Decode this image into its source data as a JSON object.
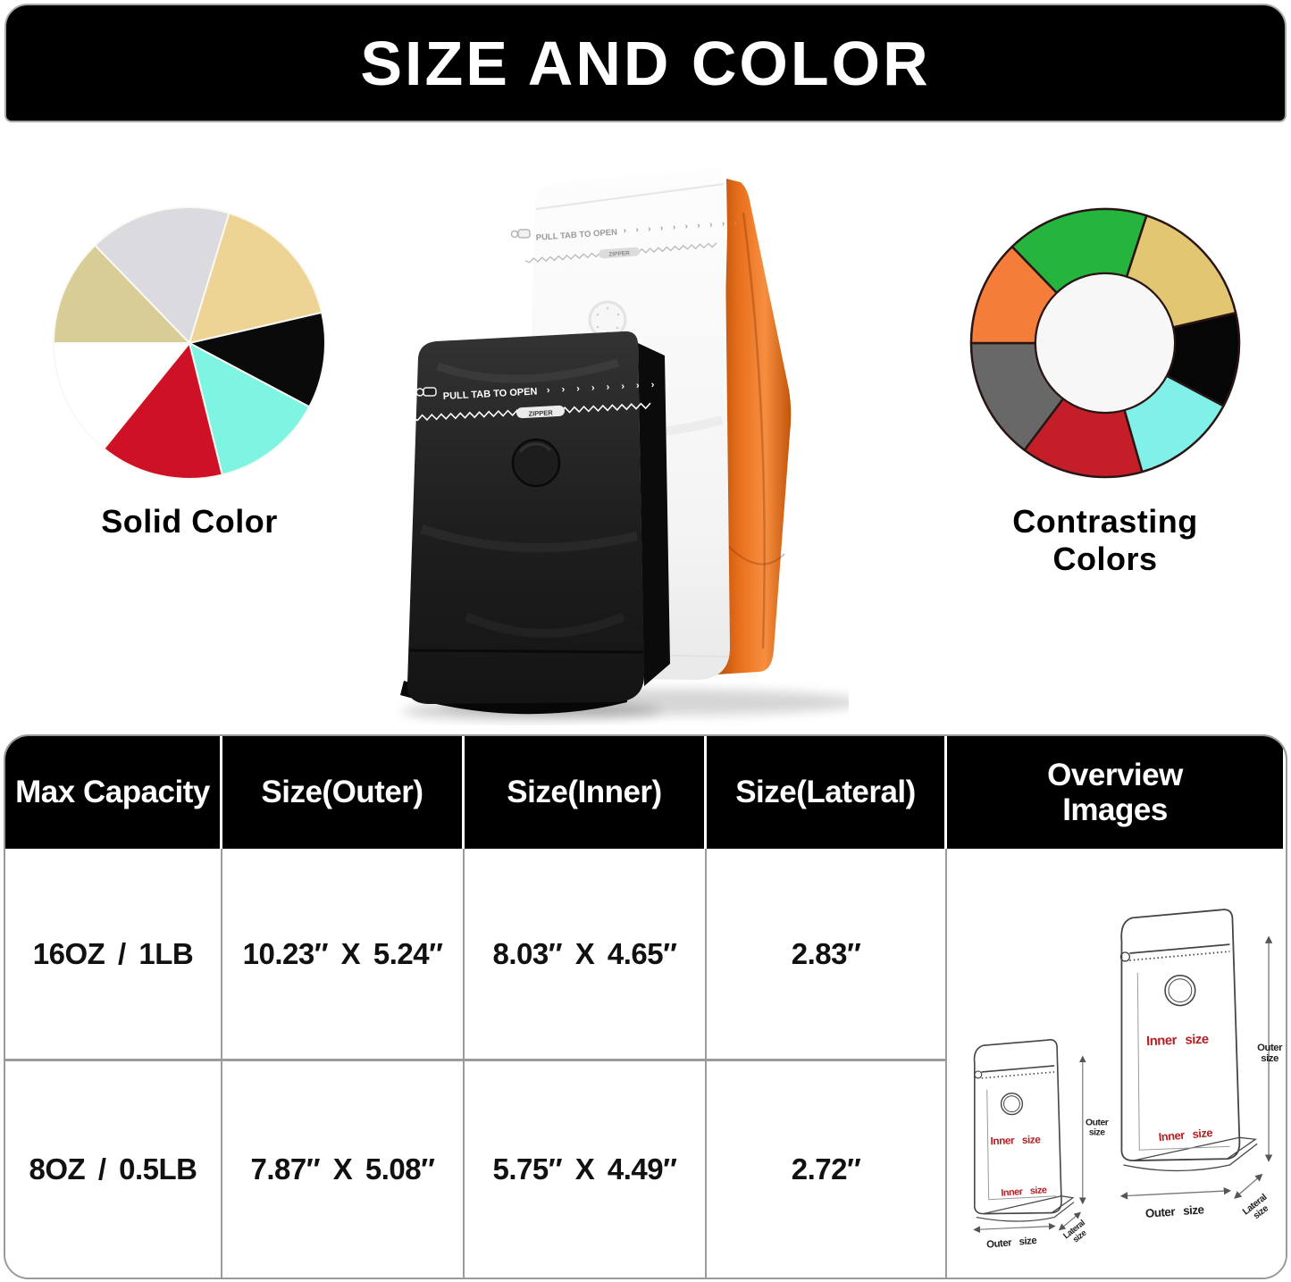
{
  "title": "SIZE AND COLOR",
  "bags": {
    "pull_tab": "PULL TAB TO OPEN",
    "arrows": "› › › › › › › › › ›",
    "zipper": "ZIPPER"
  },
  "table": {
    "headers": [
      "Max Capacity",
      "Size(Outer)",
      "Size(Inner)",
      "Size(Lateral)",
      "Overview Images"
    ],
    "rows": [
      [
        "16OZ / 1LB",
        "10.23″ X 5.24″",
        "8.03″ X 4.65″",
        "2.83″"
      ],
      [
        "8OZ / 0.5LB",
        "7.87″ X 5.08″",
        "5.75″ X 4.49″",
        "2.72″"
      ]
    ]
  },
  "overview": {
    "inner": "Inner size",
    "outer": "Outer size",
    "lateral": "Lateral size"
  },
  "chart_data": [
    {
      "type": "pie",
      "title": "Solid Color",
      "legend": false,
      "note": "color-option wheel, 7 equalish slices, angles clockwise from 12 o'clock",
      "segments": [
        {
          "name": "light-gray",
          "color": "#DBDADF",
          "start_deg": -44,
          "end_deg": 17
        },
        {
          "name": "gold",
          "color": "#EDD494",
          "start_deg": 17,
          "end_deg": 77
        },
        {
          "name": "black",
          "color": "#0A0A0A",
          "start_deg": 77,
          "end_deg": 118
        },
        {
          "name": "aqua",
          "color": "#7EF4E3",
          "start_deg": 118,
          "end_deg": 166
        },
        {
          "name": "red",
          "color": "#CE1126",
          "start_deg": 166,
          "end_deg": 219
        },
        {
          "name": "white",
          "color": "#FFFFFF",
          "start_deg": 219,
          "end_deg": 270
        },
        {
          "name": "khaki",
          "color": "#D8CD96",
          "start_deg": 270,
          "end_deg": 316
        }
      ]
    },
    {
      "type": "donut",
      "title": "Contrasting Colors",
      "legend": false,
      "inner_ratio": 0.52,
      "note": "color-option ring, 7 slices with dark outlines, angles clockwise from 12 o'clock",
      "segments": [
        {
          "name": "green",
          "color": "#25B53E",
          "start_deg": -44,
          "end_deg": 18
        },
        {
          "name": "gold",
          "color": "#E2C671",
          "start_deg": 18,
          "end_deg": 77
        },
        {
          "name": "black",
          "color": "#060606",
          "start_deg": 77,
          "end_deg": 118
        },
        {
          "name": "aqua",
          "color": "#80F0E8",
          "start_deg": 118,
          "end_deg": 164
        },
        {
          "name": "red",
          "color": "#C41F28",
          "start_deg": 164,
          "end_deg": 217
        },
        {
          "name": "gray",
          "color": "#686868",
          "start_deg": 217,
          "end_deg": 270
        },
        {
          "name": "orange",
          "color": "#F47E39",
          "start_deg": 270,
          "end_deg": 316
        }
      ]
    }
  ]
}
